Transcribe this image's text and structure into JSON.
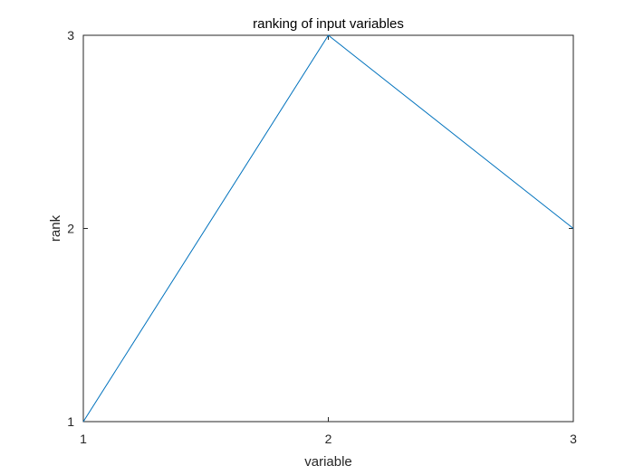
{
  "chart_data": {
    "type": "line",
    "title": "ranking of input variables",
    "xlabel": "variable",
    "ylabel": "rank",
    "x": [
      1,
      2,
      3
    ],
    "series": [
      {
        "values": [
          1,
          3,
          2
        ],
        "color": "#0072BD"
      }
    ],
    "xlim": [
      1,
      3
    ],
    "ylim": [
      1,
      3
    ],
    "xticks": [
      1,
      2,
      3
    ],
    "yticks": [
      1,
      2,
      3
    ],
    "xtick_labels": [
      "1",
      "2",
      "3"
    ],
    "ytick_labels": [
      "1",
      "2",
      "3"
    ],
    "grid": false,
    "box": true
  }
}
